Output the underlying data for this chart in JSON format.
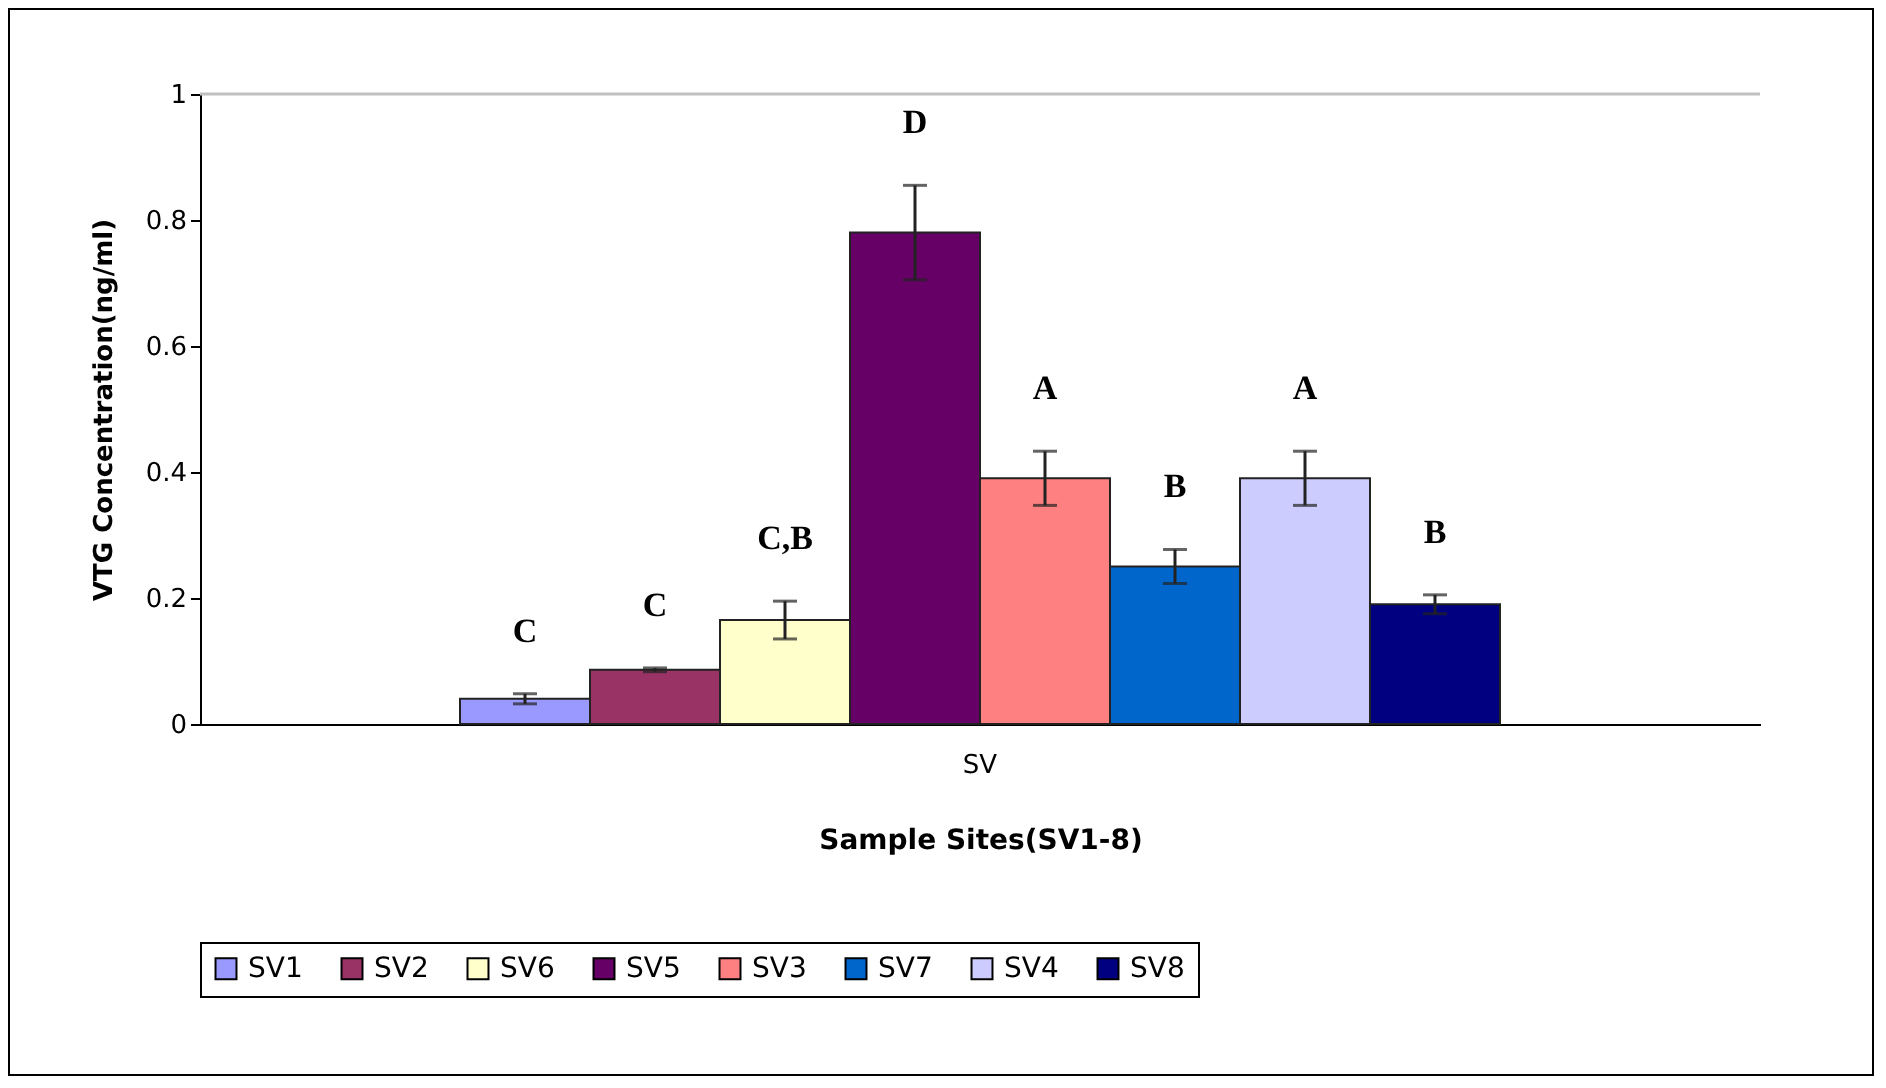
{
  "chart_data": {
    "type": "bar",
    "xlabel": "Sample Sites(SV1-8)",
    "ylabel": "VTG Concentration(ng/ml)",
    "categories": [
      "SV"
    ],
    "series": [
      {
        "name": "SV1",
        "color": "#9999ff",
        "values": [
          0.04
        ],
        "errors": [
          0.008
        ]
      },
      {
        "name": "SV2",
        "color": "#993366",
        "values": [
          0.086
        ],
        "errors": [
          0.003
        ]
      },
      {
        "name": "SV6",
        "color": "#ffffcc",
        "values": [
          0.165
        ],
        "errors": [
          0.03
        ]
      },
      {
        "name": "SV5",
        "color": "#660066",
        "values": [
          0.78
        ],
        "errors": [
          0.075
        ]
      },
      {
        "name": "SV3",
        "color": "#ff8080",
        "values": [
          0.39
        ],
        "errors": [
          0.043
        ]
      },
      {
        "name": "SV7",
        "color": "#0066cc",
        "values": [
          0.25
        ],
        "errors": [
          0.027
        ]
      },
      {
        "name": "SV4",
        "color": "#ccccff",
        "values": [
          0.39
        ],
        "errors": [
          0.043
        ]
      },
      {
        "name": "SV8",
        "color": "#000080",
        "values": [
          0.19
        ],
        "errors": [
          0.015
        ]
      }
    ],
    "annotations": [
      "C",
      "C",
      "C,B",
      "D",
      "A",
      "B",
      "A",
      "B"
    ],
    "ylim": [
      0,
      1
    ],
    "yticks": [
      0,
      0.2,
      0.4,
      0.6,
      0.8,
      1
    ],
    "ref_lines": [
      {
        "axis": "y",
        "value": 1,
        "color": "#c0c0c0"
      }
    ],
    "grid": false,
    "legend": "bottom"
  }
}
